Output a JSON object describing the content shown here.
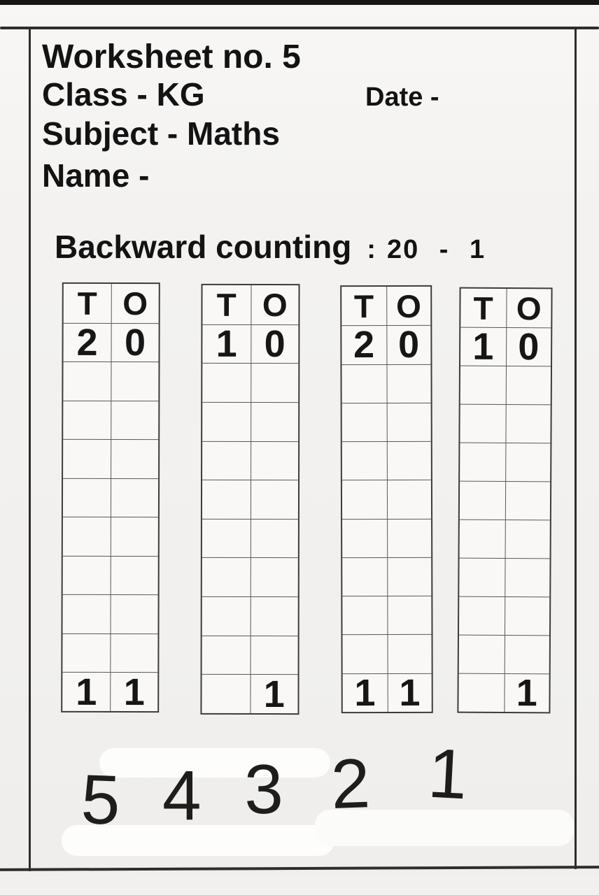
{
  "header": {
    "worksheet_title": "Worksheet no. 5",
    "class_line": "Class - KG",
    "date_label": "Date -",
    "subject_line": "Subject - Maths",
    "name_line": "Name -"
  },
  "exercise": {
    "title": "Backward counting",
    "colon": ":",
    "range": "20 - 1"
  },
  "tables": [
    {
      "headers": [
        "T",
        "O"
      ],
      "first_row": [
        "2",
        "0"
      ],
      "empty_row_count": 8,
      "last_row": [
        "1",
        "1"
      ]
    },
    {
      "headers": [
        "T",
        "O"
      ],
      "first_row": [
        "1",
        "0"
      ],
      "empty_row_count": 8,
      "last_row": [
        "",
        "1"
      ]
    },
    {
      "headers": [
        "T",
        "O"
      ],
      "first_row": [
        "2",
        "0"
      ],
      "empty_row_count": 8,
      "last_row": [
        "1",
        "1"
      ]
    },
    {
      "headers": [
        "T",
        "O"
      ],
      "first_row": [
        "1",
        "0"
      ],
      "empty_row_count": 8,
      "last_row": [
        "",
        "1"
      ]
    }
  ],
  "bottom_numbers": [
    "5",
    "4",
    "3",
    "2",
    "1"
  ]
}
